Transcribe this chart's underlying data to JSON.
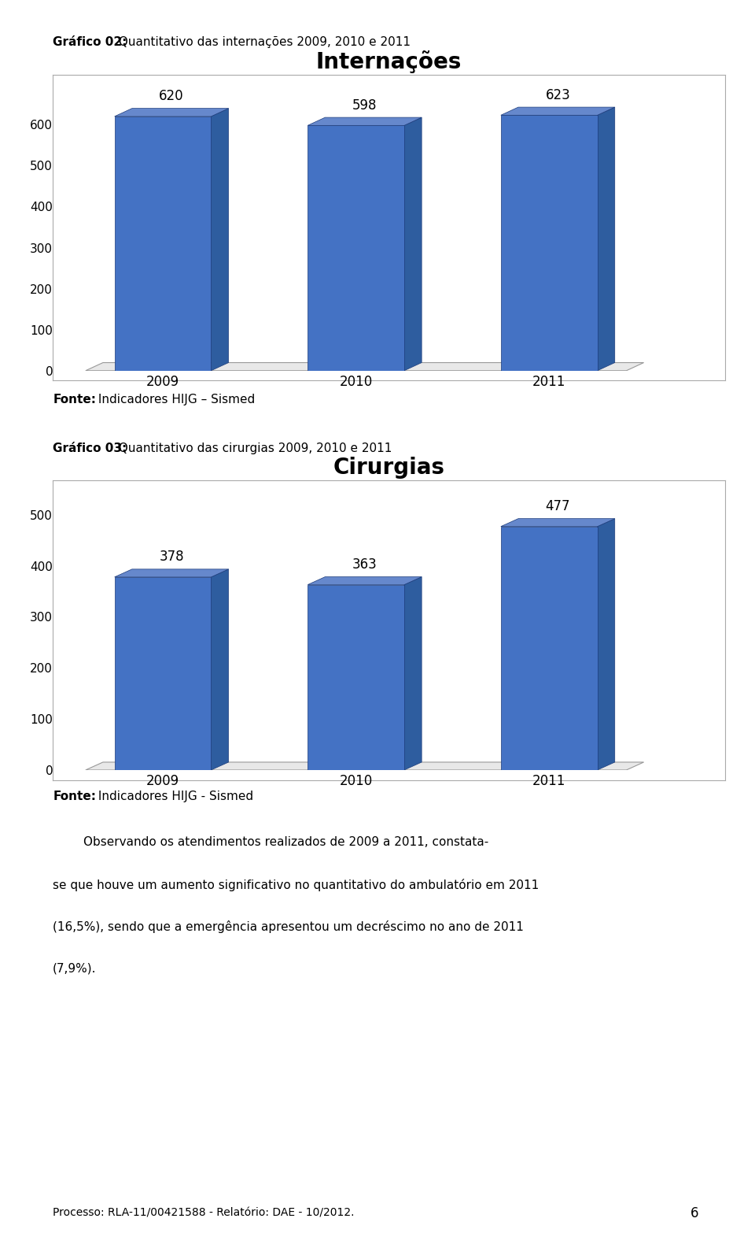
{
  "chart1_title": "Internações",
  "chart1_label": "Gráfico 02:",
  "chart1_label2": " Quantitativo das internações 2009, 2010 e 2011",
  "chart1_categories": [
    "2009",
    "2010",
    "2011"
  ],
  "chart1_values": [
    620,
    598,
    623
  ],
  "chart1_ylim": [
    0,
    700
  ],
  "chart1_yticks": [
    0,
    100,
    200,
    300,
    400,
    500,
    600
  ],
  "chart1_source": "Fonte:",
  "chart1_source2": " Indicadores HIJG – Sismed",
  "chart2_title": "Cirurgias",
  "chart2_label": "Gráfico 03:",
  "chart2_label2": " Quantitativo das cirurgias 2009, 2010 e 2011",
  "chart2_categories": [
    "2009",
    "2010",
    "2011"
  ],
  "chart2_values": [
    378,
    363,
    477
  ],
  "chart2_ylim": [
    0,
    550
  ],
  "chart2_yticks": [
    0,
    100,
    200,
    300,
    400,
    500
  ],
  "chart2_source": "Fonte:",
  "chart2_source2": " Indicadores HIJG - Sismed",
  "bar_color": "#4472C4",
  "bar_top_color": "#6688CC",
  "bar_side_color": "#2E5D9F",
  "paragraph_line1": "        Observando os atendimentos realizados de 2009 a 2011, constata-",
  "paragraph_line2": "se que houve um aumento significativo no quantitativo do ambulatório em 2011",
  "paragraph_line3": "(16,5%), sendo que a emergência apresentou um decréscimo no ano de 2011",
  "paragraph_line4": "(7,9%).",
  "footer": "Processo: RLA-11/00421588 - Relatório: DAE - 10/2012.",
  "page_number": "6",
  "bg_color": "#FFFFFF",
  "text_color": "#000000"
}
